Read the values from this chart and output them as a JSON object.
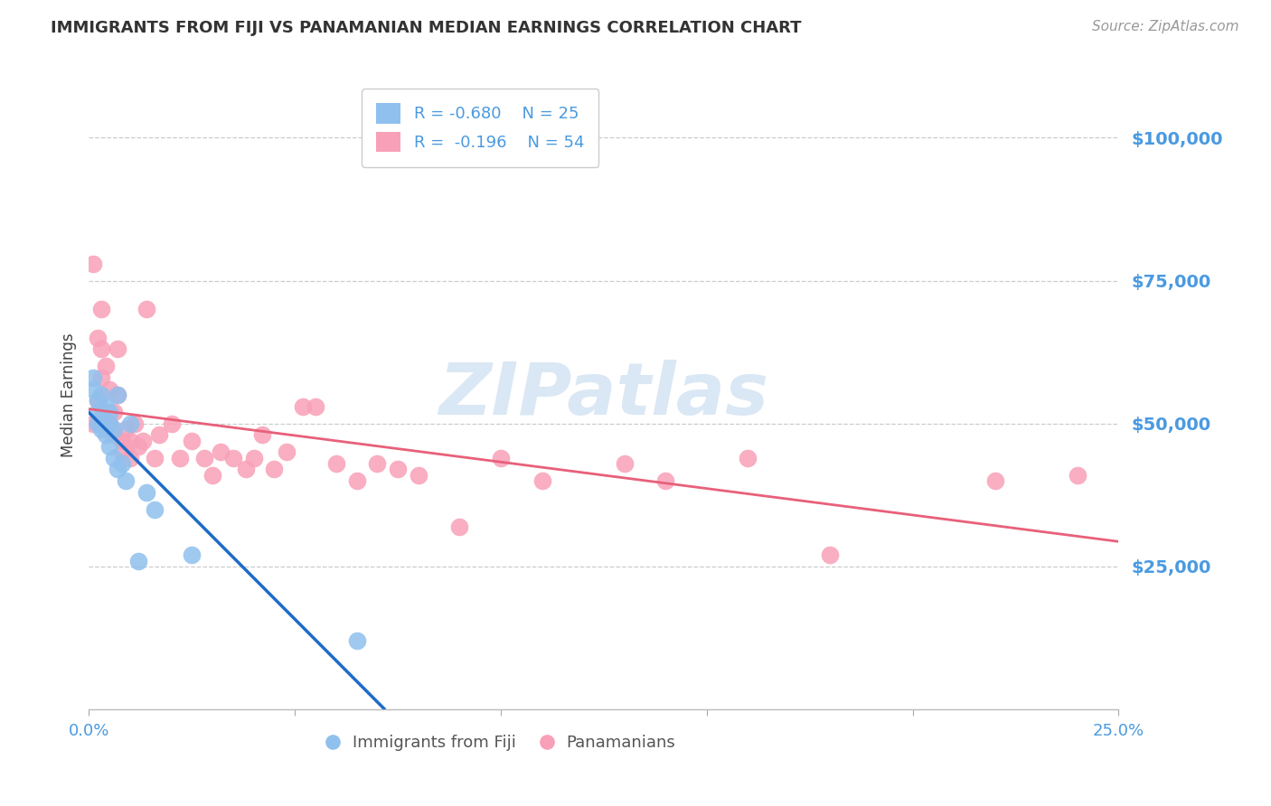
{
  "title": "IMMIGRANTS FROM FIJI VS PANAMANIAN MEDIAN EARNINGS CORRELATION CHART",
  "source": "Source: ZipAtlas.com",
  "ylabel": "Median Earnings",
  "yticks": [
    0,
    25000,
    50000,
    75000,
    100000
  ],
  "ytick_labels": [
    "",
    "$25,000",
    "$50,000",
    "$75,000",
    "$100,000"
  ],
  "xlim": [
    0.0,
    0.25
  ],
  "ylim": [
    0,
    110000
  ],
  "fiji_R": "-0.680",
  "fiji_N": "25",
  "panama_R": "-0.196",
  "panama_N": "54",
  "fiji_color": "#90C0EE",
  "panama_color": "#F8A0B8",
  "fiji_line_color": "#1E6BC8",
  "panama_line_color": "#E8607A",
  "grid_color": "#CCCCCC",
  "title_color": "#333333",
  "axis_label_color": "#4A9AE0",
  "watermark": "ZIPatlas",
  "fiji_points_x": [
    0.001,
    0.001,
    0.002,
    0.002,
    0.002,
    0.003,
    0.003,
    0.003,
    0.004,
    0.004,
    0.005,
    0.005,
    0.005,
    0.006,
    0.006,
    0.007,
    0.007,
    0.008,
    0.009,
    0.01,
    0.012,
    0.014,
    0.016,
    0.025,
    0.065
  ],
  "fiji_points_y": [
    56000,
    58000,
    52000,
    54000,
    50000,
    51000,
    49000,
    55000,
    53000,
    48000,
    52000,
    50000,
    46000,
    49000,
    44000,
    55000,
    42000,
    43000,
    40000,
    50000,
    26000,
    38000,
    35000,
    27000,
    12000
  ],
  "panama_points_x": [
    0.001,
    0.001,
    0.002,
    0.002,
    0.003,
    0.003,
    0.003,
    0.004,
    0.004,
    0.005,
    0.005,
    0.006,
    0.006,
    0.007,
    0.007,
    0.008,
    0.008,
    0.009,
    0.01,
    0.01,
    0.011,
    0.012,
    0.013,
    0.014,
    0.016,
    0.017,
    0.02,
    0.022,
    0.025,
    0.028,
    0.03,
    0.032,
    0.035,
    0.038,
    0.04,
    0.042,
    0.045,
    0.048,
    0.052,
    0.055,
    0.06,
    0.065,
    0.07,
    0.075,
    0.08,
    0.09,
    0.1,
    0.11,
    0.13,
    0.14,
    0.16,
    0.18,
    0.22,
    0.24
  ],
  "panama_points_y": [
    78000,
    50000,
    65000,
    54000,
    70000,
    63000,
    58000,
    60000,
    52000,
    56000,
    50000,
    52000,
    48000,
    63000,
    55000,
    47000,
    45000,
    49000,
    47000,
    44000,
    50000,
    46000,
    47000,
    70000,
    44000,
    48000,
    50000,
    44000,
    47000,
    44000,
    41000,
    45000,
    44000,
    42000,
    44000,
    48000,
    42000,
    45000,
    53000,
    53000,
    43000,
    40000,
    43000,
    42000,
    41000,
    32000,
    44000,
    40000,
    43000,
    40000,
    44000,
    27000,
    40000,
    41000
  ]
}
